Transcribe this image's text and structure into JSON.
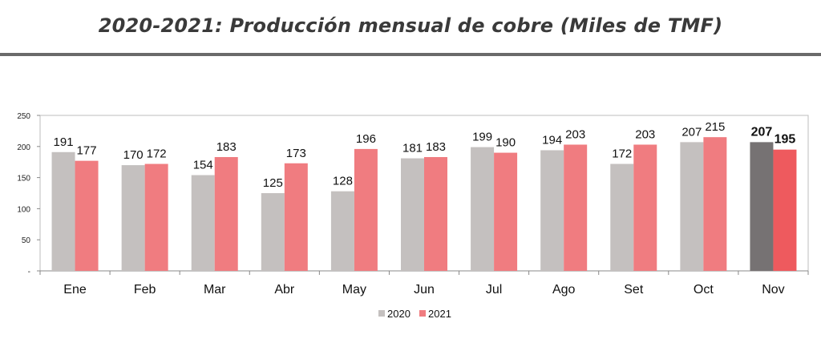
{
  "title": "2020-2021: Producción mensual de cobre (Miles de TMF)",
  "colors": {
    "s2020": "#c4c0bf",
    "s2021": "#f07c80",
    "s2020_highlight": "#767273",
    "s2021_highlight": "#ee5a5e",
    "title_rule": "#6a6a6a"
  },
  "chart_data": {
    "type": "bar",
    "title": "2020-2021: Producción mensual de cobre (Miles de TMF)",
    "xlabel": "",
    "ylabel": "",
    "ylim": [
      0,
      250
    ],
    "yticks": [
      "-",
      "50",
      "100",
      "150",
      "200",
      "250"
    ],
    "grid": false,
    "legend_position": "bottom-center",
    "categories": [
      "Ene",
      "Feb",
      "Mar",
      "Abr",
      "May",
      "Jun",
      "Jul",
      "Ago",
      "Set",
      "Oct",
      "Nov"
    ],
    "highlight_category": "Nov",
    "series": [
      {
        "name": "2020",
        "values": [
          191,
          170,
          154,
          125,
          128,
          181,
          199,
          194,
          172,
          207,
          207
        ]
      },
      {
        "name": "2021",
        "values": [
          177,
          172,
          183,
          173,
          196,
          183,
          190,
          203,
          203,
          215,
          195
        ]
      }
    ]
  }
}
